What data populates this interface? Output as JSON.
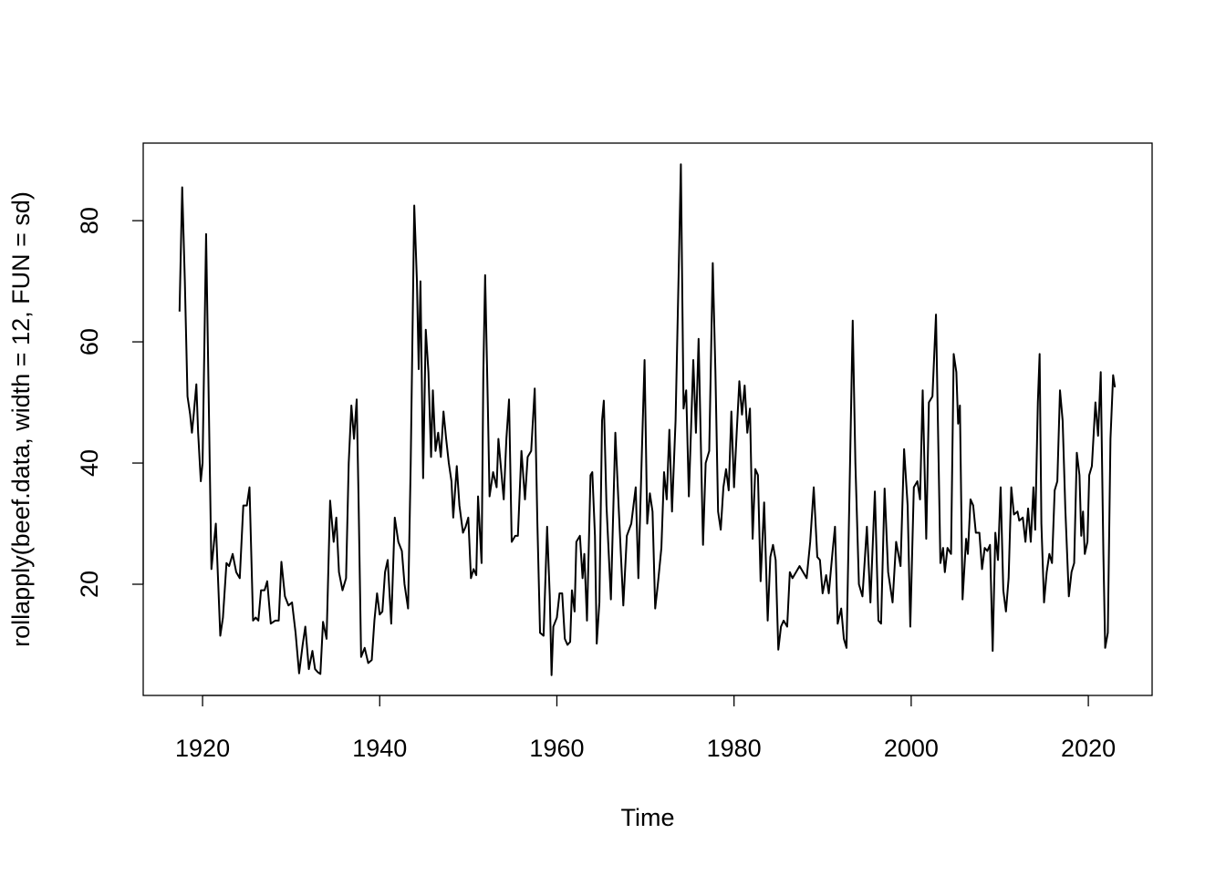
{
  "chart_data": {
    "type": "line",
    "xlabel": "Time",
    "ylabel": "rollapply(beef.data, width = 12, FUN = sd)",
    "color": "#000000",
    "xlim": [
      1913.3,
      2027.2
    ],
    "ylim": [
      1.65,
      92.8
    ],
    "xticks": [
      1920,
      1940,
      1960,
      1980,
      2000,
      2020
    ],
    "yticks": [
      20,
      40,
      60,
      80
    ],
    "grid": false,
    "x": [
      1917.4,
      1917.7,
      1918.0,
      1918.3,
      1918.6,
      1918.8,
      1919.0,
      1919.3,
      1919.5,
      1919.8,
      1920.0,
      1920.4,
      1920.7,
      1921.0,
      1921.5,
      1922.0,
      1922.3,
      1922.7,
      1923.0,
      1923.4,
      1923.8,
      1924.2,
      1924.6,
      1925.0,
      1925.3,
      1925.7,
      1926.0,
      1926.3,
      1926.6,
      1927.0,
      1927.3,
      1927.7,
      1928.2,
      1928.6,
      1928.9,
      1929.3,
      1929.7,
      1930.1,
      1930.5,
      1930.9,
      1931.3,
      1931.6,
      1932.0,
      1932.4,
      1932.7,
      1933.0,
      1933.3,
      1933.6,
      1934.0,
      1934.4,
      1934.8,
      1935.1,
      1935.4,
      1935.8,
      1936.2,
      1936.5,
      1936.8,
      1937.1,
      1937.4,
      1937.6,
      1937.9,
      1938.3,
      1938.7,
      1939.1,
      1939.4,
      1939.7,
      1940.0,
      1940.3,
      1940.6,
      1940.9,
      1941.3,
      1941.7,
      1942.1,
      1942.5,
      1942.8,
      1943.2,
      1943.5,
      1943.9,
      1944.2,
      1944.4,
      1944.6,
      1944.9,
      1945.2,
      1945.5,
      1945.8,
      1946.0,
      1946.3,
      1946.6,
      1946.9,
      1947.2,
      1947.5,
      1947.8,
      1948.1,
      1948.3,
      1948.7,
      1949.0,
      1949.4,
      1949.7,
      1950.0,
      1950.3,
      1950.6,
      1950.9,
      1951.1,
      1951.5,
      1951.7,
      1951.9,
      1952.2,
      1952.4,
      1952.8,
      1953.2,
      1953.4,
      1953.7,
      1954.0,
      1954.3,
      1954.6,
      1954.9,
      1955.3,
      1955.6,
      1956.0,
      1956.4,
      1956.7,
      1957.1,
      1957.5,
      1957.8,
      1958.1,
      1958.5,
      1958.9,
      1959.2,
      1959.4,
      1959.6,
      1960.0,
      1960.3,
      1960.6,
      1960.9,
      1961.2,
      1961.5,
      1961.7,
      1962.0,
      1962.2,
      1962.6,
      1962.9,
      1963.1,
      1963.4,
      1963.8,
      1964.0,
      1964.3,
      1964.5,
      1964.8,
      1965.1,
      1965.3,
      1965.6,
      1966.1,
      1966.6,
      1967.0,
      1967.5,
      1967.9,
      1968.4,
      1968.9,
      1969.2,
      1969.6,
      1969.9,
      1970.2,
      1970.5,
      1970.8,
      1971.1,
      1971.4,
      1971.8,
      1972.1,
      1972.4,
      1972.7,
      1973.0,
      1973.4,
      1973.8,
      1974.0,
      1974.3,
      1974.6,
      1974.9,
      1975.4,
      1975.7,
      1976.0,
      1976.5,
      1976.8,
      1977.2,
      1977.6,
      1977.9,
      1978.2,
      1978.5,
      1978.8,
      1979.1,
      1979.4,
      1979.7,
      1980.0,
      1980.3,
      1980.6,
      1980.9,
      1981.2,
      1981.5,
      1981.8,
      1982.1,
      1982.4,
      1982.7,
      1983.0,
      1983.4,
      1983.8,
      1984.1,
      1984.4,
      1984.7,
      1985.0,
      1985.3,
      1985.6,
      1986.0,
      1986.3,
      1986.6,
      1987.0,
      1987.4,
      1987.8,
      1988.2,
      1988.6,
      1989.0,
      1989.4,
      1989.7,
      1990.0,
      1990.4,
      1990.7,
      1991.1,
      1991.4,
      1991.7,
      1992.1,
      1992.4,
      1992.7,
      1993.1,
      1993.4,
      1993.7,
      1994.1,
      1994.5,
      1995.0,
      1995.4,
      1995.9,
      1996.3,
      1996.6,
      1997.0,
      1997.4,
      1997.9,
      1998.3,
      1998.8,
      1999.2,
      1999.6,
      1999.9,
      2000.3,
      2000.7,
      2001.0,
      2001.3,
      2001.7,
      2002.0,
      2002.4,
      2002.8,
      2003.1,
      2003.3,
      2003.6,
      2003.8,
      2004.1,
      2004.5,
      2004.8,
      2005.1,
      2005.3,
      2005.5,
      2005.8,
      2006.2,
      2006.4,
      2006.7,
      2007.0,
      2007.3,
      2007.7,
      2008.0,
      2008.3,
      2008.6,
      2008.9,
      2009.2,
      2009.5,
      2009.8,
      2010.1,
      2010.4,
      2010.7,
      2011.0,
      2011.3,
      2011.6,
      2012.0,
      2012.2,
      2012.6,
      2012.9,
      2013.2,
      2013.5,
      2013.8,
      2014.0,
      2014.3,
      2014.5,
      2014.7,
      2015.0,
      2015.3,
      2015.6,
      2015.9,
      2016.2,
      2016.5,
      2016.8,
      2017.1,
      2017.4,
      2017.8,
      2018.1,
      2018.4,
      2018.7,
      2019.0,
      2019.2,
      2019.4,
      2019.6,
      2019.9,
      2020.1,
      2020.4,
      2020.8,
      2021.1,
      2021.4,
      2021.7,
      2021.9,
      2022.2,
      2022.5,
      2022.8,
      2023.0
    ],
    "y": [
      65,
      85.5,
      70,
      51,
      48,
      45,
      48,
      53,
      45,
      37,
      40,
      77.8,
      50,
      22.5,
      30,
      11.5,
      14.5,
      23.5,
      23,
      25,
      22,
      21,
      33,
      33,
      36,
      14,
      14.5,
      14,
      19,
      19,
      20.5,
      13.5,
      14,
      14,
      23.7,
      18,
      16.5,
      17,
      12,
      5.3,
      10,
      13,
      6,
      9,
      6,
      5.5,
      5.2,
      13.8,
      11,
      33.8,
      27,
      31,
      22,
      19,
      21,
      40,
      49.5,
      44,
      50.5,
      35,
      8,
      9.5,
      7,
      7.5,
      14,
      18.5,
      15,
      15.5,
      22,
      24,
      13.5,
      31,
      27,
      25.5,
      20,
      16,
      40,
      82.5,
      70,
      55.5,
      70,
      37.5,
      62,
      55,
      41,
      52,
      42,
      45,
      41,
      48.5,
      44,
      40,
      37,
      31,
      39.5,
      33,
      28.5,
      29.5,
      31,
      21,
      22.5,
      21.5,
      34.5,
      23.5,
      55,
      71,
      50,
      34.5,
      38.5,
      36,
      44,
      39,
      34,
      44,
      50.5,
      27,
      28,
      28,
      42,
      34,
      41,
      42,
      52.3,
      30,
      12,
      11.5,
      29.5,
      18,
      5,
      13,
      14.5,
      18.5,
      18.5,
      11,
      10,
      10.5,
      19,
      15.5,
      27,
      28,
      21,
      25,
      14,
      38,
      38.5,
      28,
      10.2,
      17,
      47,
      50.3,
      33,
      17.5,
      45,
      32,
      16.5,
      28,
      30,
      36,
      21,
      42,
      57,
      30,
      35,
      32,
      16,
      20,
      26,
      38.5,
      34,
      45.5,
      32,
      47,
      75,
      89.3,
      49,
      52,
      34.5,
      57,
      45,
      60.5,
      26.5,
      40,
      42,
      73,
      55,
      32,
      29,
      36,
      39,
      35.5,
      48.5,
      36,
      45,
      53.5,
      48,
      52.8,
      45,
      49,
      27.5,
      39,
      38,
      20.5,
      33.5,
      14,
      24.5,
      26.5,
      24,
      9.2,
      13,
      14,
      13,
      22,
      21,
      22,
      23,
      22,
      21,
      27,
      36,
      24.5,
      24,
      18.5,
      21.5,
      18.5,
      25,
      29.5,
      13.5,
      16,
      11,
      9.5,
      40,
      63.5,
      40,
      20,
      18,
      29.5,
      17,
      35.3,
      14,
      13.5,
      35.8,
      22,
      17,
      27,
      23,
      42.3,
      33,
      13,
      36,
      37,
      34,
      52,
      27.5,
      50,
      51,
      64.5,
      40,
      23.5,
      26,
      22,
      26,
      25,
      58,
      55,
      46.5,
      49.5,
      17.5,
      27.5,
      25,
      34,
      33,
      28.5,
      28.5,
      22.5,
      26,
      25.5,
      26.5,
      9,
      28.5,
      24,
      36,
      19,
      15.5,
      21,
      36,
      31.5,
      32,
      30.5,
      31,
      27,
      32.5,
      27,
      36,
      29,
      50,
      58,
      30,
      17,
      22,
      25,
      23.5,
      35.5,
      37,
      52,
      47,
      32.5,
      18,
      22,
      23.5,
      41.7,
      38,
      28,
      32,
      25,
      27,
      38,
      39.5,
      50,
      44.5,
      55,
      25,
      9.5,
      12,
      44,
      54.5,
      52.5
    ]
  }
}
